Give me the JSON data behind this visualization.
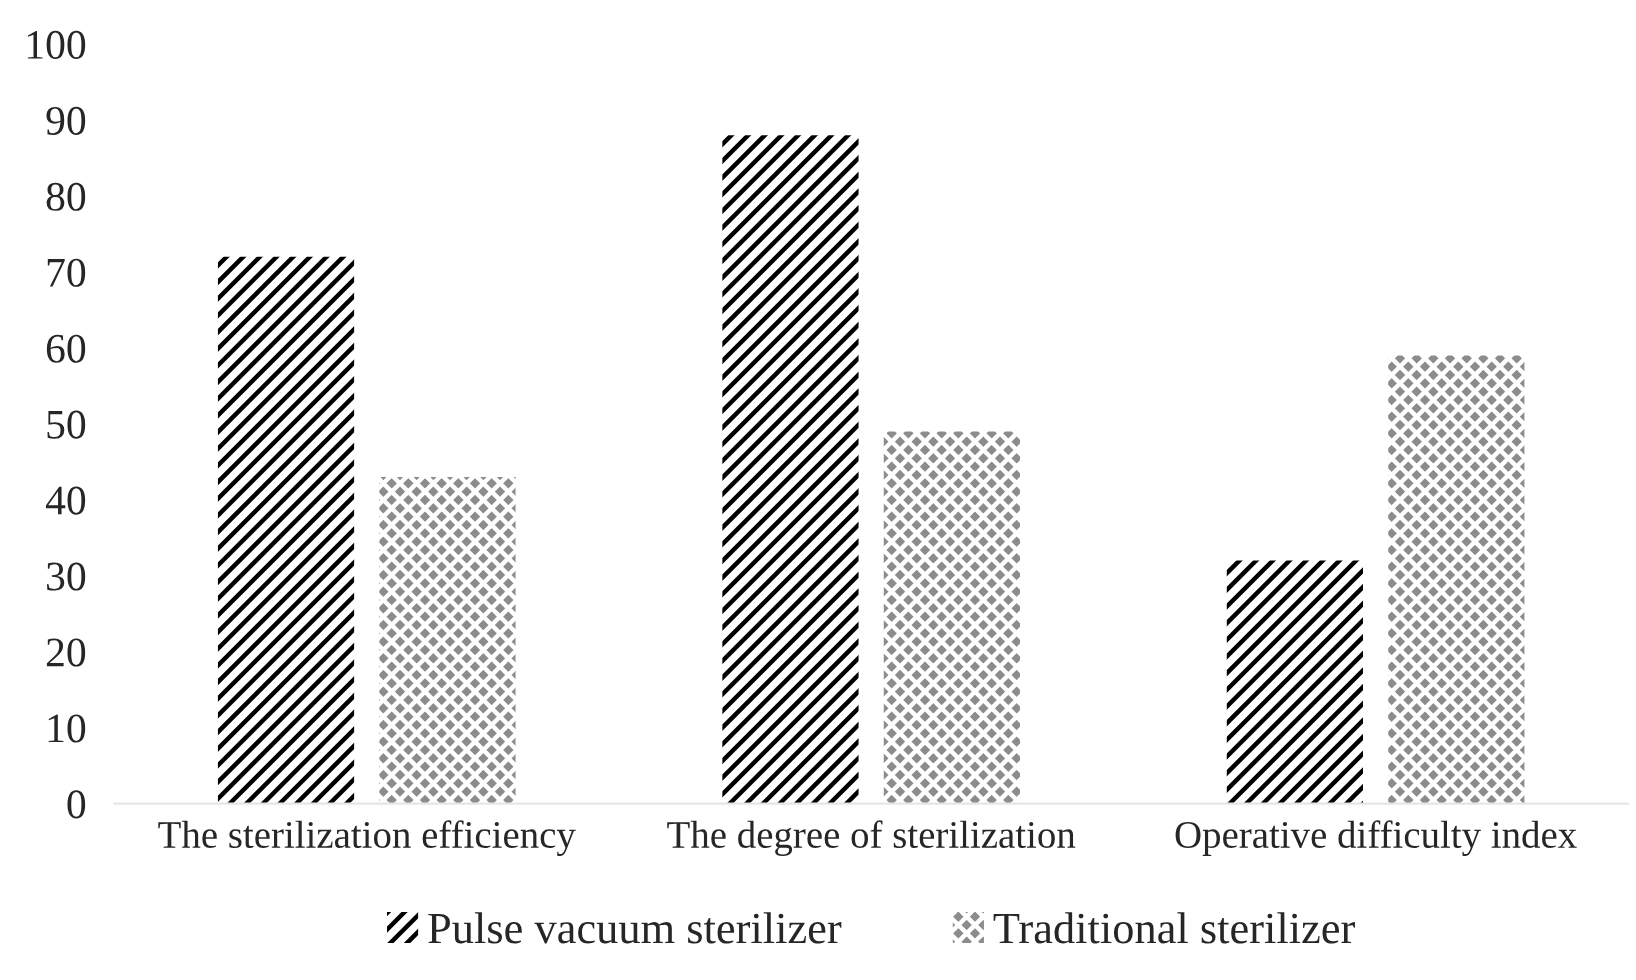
{
  "chart_data": {
    "type": "bar",
    "categories": [
      "The sterilization efficiency",
      "The degree of sterilization",
      "Operative difficulty index"
    ],
    "series": [
      {
        "name": "Pulse vacuum sterilizer",
        "color": "#000000",
        "values": [
          72,
          88,
          32
        ]
      },
      {
        "name": "Traditional sterilizer",
        "color": "#8c8c8c",
        "values": [
          43,
          49,
          59
        ]
      }
    ],
    "ylim": [
      0,
      100
    ],
    "yticks": [
      0,
      10,
      20,
      30,
      40,
      50,
      60,
      70,
      80,
      90,
      100
    ],
    "grid": false,
    "legend": "bottom"
  }
}
